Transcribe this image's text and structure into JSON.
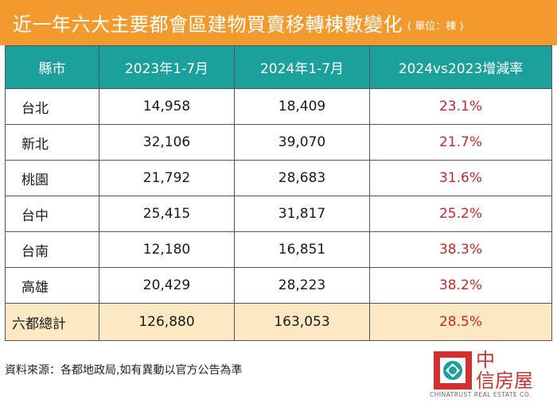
{
  "title": "近一年六大主要都會區建物買賣移轉棟數變化",
  "unit": "( 單位：棟 )",
  "table": {
    "headers": [
      "縣市",
      "2023年1-7月",
      "2024年1-7月",
      "2024vs2023增減率"
    ],
    "rows": [
      {
        "city": "台北",
        "y2023": "14,958",
        "y2024": "18,409",
        "rate": "23.1%"
      },
      {
        "city": "新北",
        "y2023": "32,106",
        "y2024": "39,070",
        "rate": "21.7%"
      },
      {
        "city": "桃園",
        "y2023": "21,792",
        "y2024": "28,683",
        "rate": "31.6%"
      },
      {
        "city": "台中",
        "y2023": "25,415",
        "y2024": "31,817",
        "rate": "25.2%"
      },
      {
        "city": "台南",
        "y2023": "12,180",
        "y2024": "16,851",
        "rate": "38.3%"
      },
      {
        "city": "高雄",
        "y2023": "20,429",
        "y2024": "28,223",
        "rate": "38.2%"
      }
    ],
    "total": {
      "city": "六都總計",
      "y2023": "126,880",
      "y2024": "163,053",
      "rate": "28.5%"
    }
  },
  "source": "資料來源：各都地政局,如有異動以官方公告為準",
  "logo": {
    "name_line1": "中",
    "name_line2": "信房屋",
    "english": "CHINATRUST REAL ESTATE CO."
  },
  "colors": {
    "title_bg": "#f39a2e",
    "header_bg": "#1ba09c",
    "total_bg": "#fde8c4",
    "rate_text": "#c8262b",
    "logo_red": "#d32f2f"
  }
}
